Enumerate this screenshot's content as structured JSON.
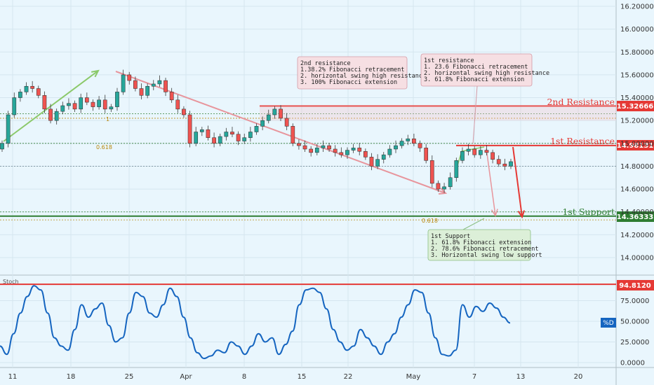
{
  "chart_data": {
    "type": "candlestick",
    "price_ticks": [
      "16.20000",
      "16.00000",
      "15.80000",
      "15.60000",
      "15.40000",
      "15.20000",
      "15.00000",
      "14.80000",
      "14.60000",
      "14.40000",
      "14.20000",
      "14.00000"
    ],
    "price_tick_values": [
      16.2,
      16.0,
      15.8,
      15.6,
      15.4,
      15.2,
      15.0,
      14.8,
      14.6,
      14.4,
      14.2,
      14.0
    ],
    "stoch_ticks": [
      "75.0000",
      "50.0000",
      "25.0000",
      "0.0000"
    ],
    "stoch_tick_values": [
      75,
      50,
      25,
      0
    ],
    "x_ticks": [
      "11",
      "18",
      "25",
      "Apr",
      "8",
      "15",
      "22",
      "May",
      "7",
      "13",
      "20"
    ],
    "indicator_name": "Stoch",
    "stoch_legend": "%D",
    "levels": {
      "second_resistance": {
        "label": "2nd Resistance",
        "value": 15.32666,
        "tag": "15.32666",
        "color": "#e53935"
      },
      "first_resistance": {
        "label": "1st Resistance",
        "value": 14.98131,
        "tag": "14.98131",
        "color": "#e53935"
      },
      "first_support": {
        "label": "1st Support",
        "value": 14.36333,
        "tag": "14.36333",
        "color": "#2e7d32"
      },
      "stoch_high": {
        "value": 94.812,
        "tag": "94.8120",
        "color": "#e53935"
      },
      "stoch_current": {
        "value": 48.0,
        "color": "#1565c0"
      }
    },
    "fib_labels": {
      "one_a": "1",
      "fib_618_a": "0.618",
      "fib_618_b": "0.618"
    },
    "notes": {
      "second_resistance": [
        "2nd resistance",
        "1.38.2% Fibonacci retracement",
        "2. horizontal swing high resistance",
        "3. 100% Fibonacci extension"
      ],
      "first_resistance": [
        "1st resistance",
        "1. 23.6 Fibonacci retracement",
        "2. horizontal swing high resistance",
        "3. 61.8% Fibonacci extension"
      ],
      "first_support": [
        "1st Support",
        "1. 61.8% Fibonacci extension",
        "2. 78.6% Fibonacci retracement",
        "3. Horizontal swing low support"
      ]
    },
    "close_series": [
      15.0,
      15.25,
      15.4,
      15.45,
      15.5,
      15.48,
      15.42,
      15.3,
      15.2,
      15.28,
      15.33,
      15.35,
      15.3,
      15.4,
      15.36,
      15.32,
      15.38,
      15.3,
      15.32,
      15.45,
      15.6,
      15.55,
      15.48,
      15.42,
      15.5,
      15.52,
      15.55,
      15.45,
      15.38,
      15.3,
      15.25,
      15.0,
      15.1,
      15.12,
      15.05,
      15.0,
      15.06,
      15.1,
      15.08,
      15.02,
      15.05,
      15.1,
      15.15,
      15.2,
      15.25,
      15.3,
      15.22,
      15.15,
      15.0,
      14.98,
      14.95,
      14.92,
      14.96,
      14.98,
      14.95,
      14.92,
      14.9,
      14.94,
      14.96,
      14.93,
      14.88,
      14.8,
      14.86,
      14.9,
      14.95,
      14.98,
      15.02,
      15.04,
      15.0,
      14.96,
      14.85,
      14.65,
      14.6,
      14.62,
      14.7,
      14.85,
      14.93,
      14.95,
      14.9,
      14.94,
      14.92,
      14.86,
      14.82,
      14.8,
      14.84
    ],
    "stoch_series": [
      20,
      10,
      35,
      60,
      80,
      93,
      88,
      60,
      30,
      20,
      15,
      40,
      70,
      55,
      65,
      72,
      45,
      25,
      30,
      60,
      85,
      80,
      60,
      55,
      70,
      90,
      80,
      55,
      30,
      12,
      5,
      8,
      15,
      12,
      25,
      20,
      10,
      20,
      35,
      25,
      30,
      10,
      22,
      38,
      70,
      88,
      90,
      85,
      65,
      40,
      25,
      15,
      20,
      40,
      30,
      20,
      10,
      25,
      35,
      55,
      70,
      88,
      85,
      60,
      30,
      10,
      8,
      15,
      70,
      55,
      68,
      62,
      72,
      66,
      55,
      48
    ]
  }
}
